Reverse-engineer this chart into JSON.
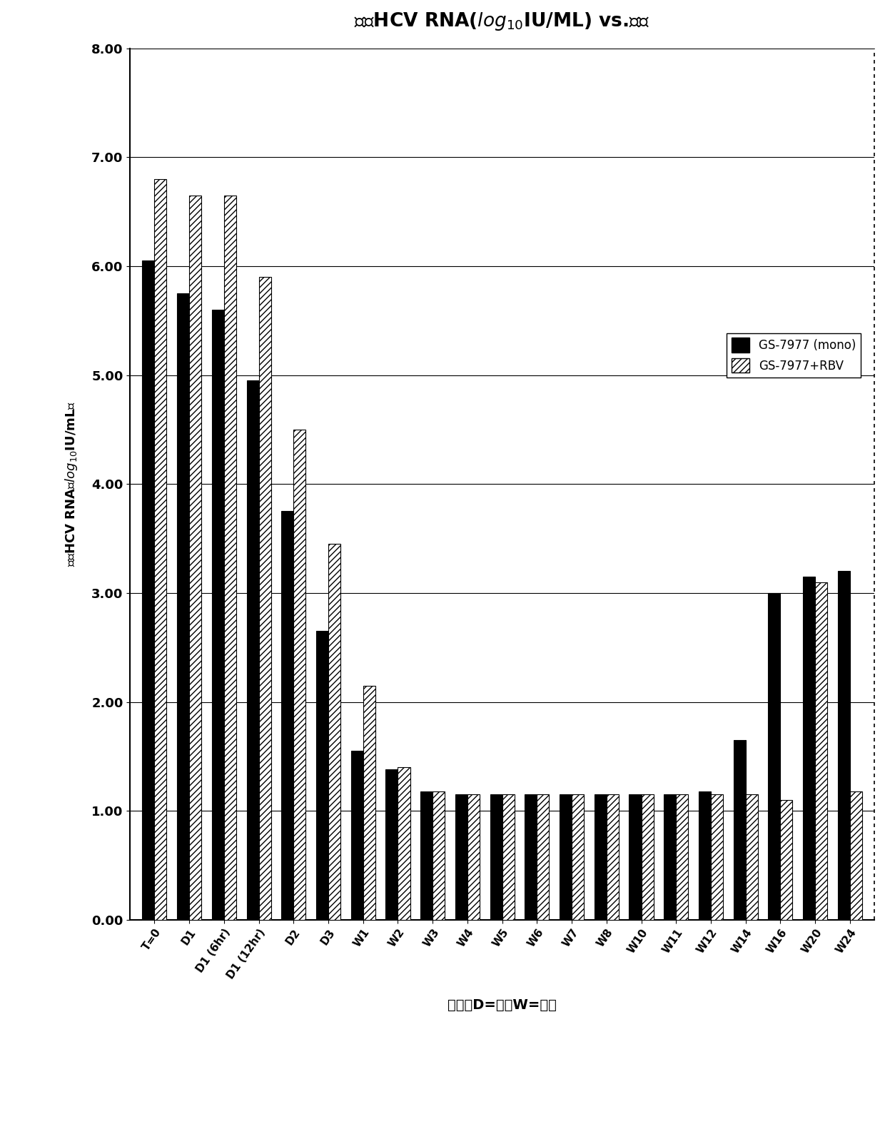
{
  "title_parts": [
    "平均HCV RNA(log",
    "10",
    "IU/ML) vs.时间"
  ],
  "xlabel": "时间（D=天；W=周）",
  "ylabel": "平均HCV RNA（log₁₀IU/mL）",
  "categories": [
    "T=0",
    "D1",
    "D1 (6hr)",
    "D1 (12hr)",
    "D2",
    "D3",
    "W1",
    "W2",
    "W3",
    "W4",
    "W5",
    "W6",
    "W7",
    "W8",
    "W10",
    "W11",
    "W12",
    "W14",
    "W16",
    "W20",
    "W24"
  ],
  "mono_values": [
    6.05,
    5.75,
    5.6,
    4.95,
    3.75,
    2.65,
    1.55,
    1.38,
    1.18,
    1.15,
    1.15,
    1.15,
    1.15,
    1.15,
    1.15,
    1.15,
    1.18,
    1.65,
    3.0,
    3.15,
    3.2
  ],
  "rbv_values": [
    6.8,
    6.65,
    6.65,
    5.9,
    4.5,
    3.45,
    2.15,
    1.4,
    1.18,
    1.15,
    1.15,
    1.15,
    1.15,
    1.15,
    1.15,
    1.15,
    1.15,
    1.15,
    1.1,
    3.1,
    1.18
  ],
  "ylim": [
    0.0,
    8.0
  ],
  "yticks": [
    0.0,
    1.0,
    2.0,
    3.0,
    4.0,
    5.0,
    6.0,
    7.0,
    8.0
  ],
  "bar_width": 0.35,
  "mono_color": "#000000",
  "rbv_color": "#ffffff",
  "rbv_hatch": "////",
  "legend_labels": [
    "GS-7977 (mono)",
    "GS-7977+RBV"
  ],
  "background_color": "#ffffff"
}
